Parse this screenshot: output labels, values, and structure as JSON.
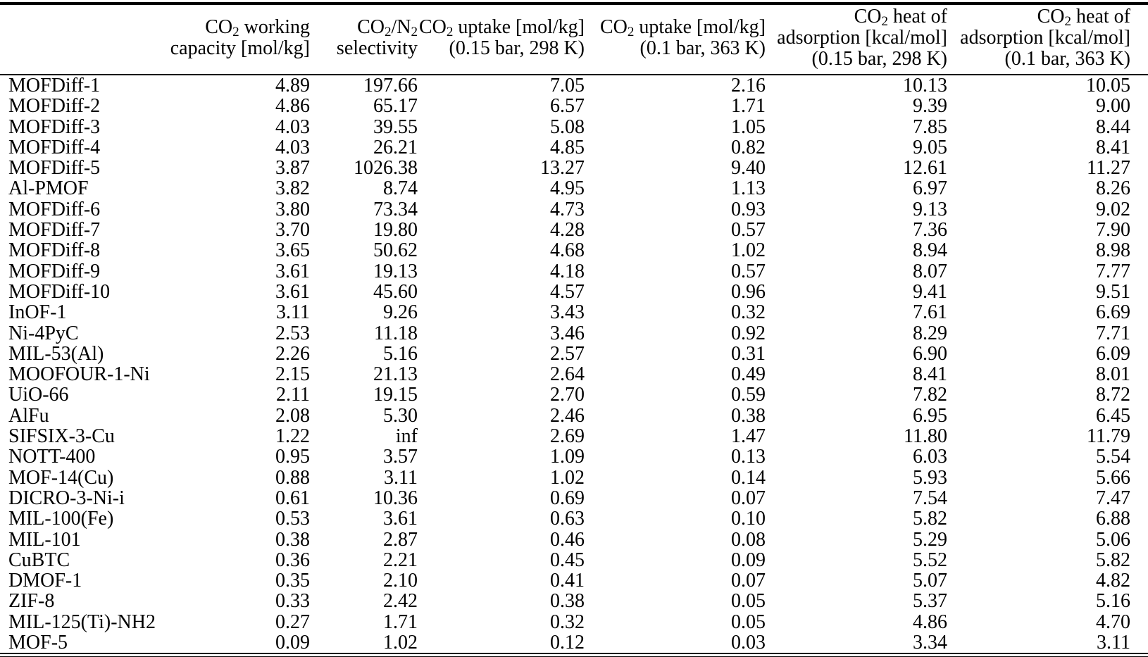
{
  "colors": {
    "background": "#ffffff",
    "text": "#000000",
    "rule": "#000000"
  },
  "table": {
    "columns": [
      {
        "id": "material",
        "lines": [
          ""
        ]
      },
      {
        "id": "working-capacity",
        "lines": [
          "CO2 working",
          "capacity [mol/kg]"
        ]
      },
      {
        "id": "selectivity",
        "lines": [
          "CO2/N2",
          "selectivity"
        ]
      },
      {
        "id": "uptake-015bar-298K",
        "lines": [
          "CO2 uptake [mol/kg]",
          "(0.15 bar, 298 K)"
        ]
      },
      {
        "id": "uptake-01bar-363K",
        "lines": [
          "CO2 uptake [mol/kg]",
          "(0.1 bar, 363 K)"
        ]
      },
      {
        "id": "heat-adsorption-015bar-298K",
        "lines": [
          "CO2 heat of",
          "adsorption [kcal/mol]",
          "(0.15 bar, 298 K)"
        ]
      },
      {
        "id": "heat-adsorption-01bar-363K",
        "lines": [
          "CO2 heat of",
          "adsorption [kcal/mol]",
          "(0.1 bar, 363 K)"
        ]
      }
    ],
    "rows": [
      {
        "material": "MOFDiff-1",
        "values": [
          "4.89",
          "197.66",
          "7.05",
          "2.16",
          "10.13",
          "10.05"
        ]
      },
      {
        "material": "MOFDiff-2",
        "values": [
          "4.86",
          "65.17",
          "6.57",
          "1.71",
          "9.39",
          "9.00"
        ]
      },
      {
        "material": "MOFDiff-3",
        "values": [
          "4.03",
          "39.55",
          "5.08",
          "1.05",
          "7.85",
          "8.44"
        ]
      },
      {
        "material": "MOFDiff-4",
        "values": [
          "4.03",
          "26.21",
          "4.85",
          "0.82",
          "9.05",
          "8.41"
        ]
      },
      {
        "material": "MOFDiff-5",
        "values": [
          "3.87",
          "1026.38",
          "13.27",
          "9.40",
          "12.61",
          "11.27"
        ]
      },
      {
        "material": "Al-PMOF",
        "values": [
          "3.82",
          "8.74",
          "4.95",
          "1.13",
          "6.97",
          "8.26"
        ]
      },
      {
        "material": "MOFDiff-6",
        "values": [
          "3.80",
          "73.34",
          "4.73",
          "0.93",
          "9.13",
          "9.02"
        ]
      },
      {
        "material": "MOFDiff-7",
        "values": [
          "3.70",
          "19.80",
          "4.28",
          "0.57",
          "7.36",
          "7.90"
        ]
      },
      {
        "material": "MOFDiff-8",
        "values": [
          "3.65",
          "50.62",
          "4.68",
          "1.02",
          "8.94",
          "8.98"
        ]
      },
      {
        "material": "MOFDiff-9",
        "values": [
          "3.61",
          "19.13",
          "4.18",
          "0.57",
          "8.07",
          "7.77"
        ]
      },
      {
        "material": "MOFDiff-10",
        "values": [
          "3.61",
          "45.60",
          "4.57",
          "0.96",
          "9.41",
          "9.51"
        ]
      },
      {
        "material": "InOF-1",
        "values": [
          "3.11",
          "9.26",
          "3.43",
          "0.32",
          "7.61",
          "6.69"
        ]
      },
      {
        "material": "Ni-4PyC",
        "values": [
          "2.53",
          "11.18",
          "3.46",
          "0.92",
          "8.29",
          "7.71"
        ]
      },
      {
        "material": "MIL-53(Al)",
        "values": [
          "2.26",
          "5.16",
          "2.57",
          "0.31",
          "6.90",
          "6.09"
        ]
      },
      {
        "material": "MOOFOUR-1-Ni",
        "values": [
          "2.15",
          "21.13",
          "2.64",
          "0.49",
          "8.41",
          "8.01"
        ]
      },
      {
        "material": "UiO-66",
        "values": [
          "2.11",
          "19.15",
          "2.70",
          "0.59",
          "7.82",
          "8.72"
        ]
      },
      {
        "material": "AlFu",
        "values": [
          "2.08",
          "5.30",
          "2.46",
          "0.38",
          "6.95",
          "6.45"
        ]
      },
      {
        "material": "SIFSIX-3-Cu",
        "values": [
          "1.22",
          "inf",
          "2.69",
          "1.47",
          "11.80",
          "11.79"
        ]
      },
      {
        "material": "NOTT-400",
        "values": [
          "0.95",
          "3.57",
          "1.09",
          "0.13",
          "6.03",
          "5.54"
        ]
      },
      {
        "material": "MOF-14(Cu)",
        "values": [
          "0.88",
          "3.11",
          "1.02",
          "0.14",
          "5.93",
          "5.66"
        ]
      },
      {
        "material": "DICRO-3-Ni-i",
        "values": [
          "0.61",
          "10.36",
          "0.69",
          "0.07",
          "7.54",
          "7.47"
        ]
      },
      {
        "material": "MIL-100(Fe)",
        "values": [
          "0.53",
          "3.61",
          "0.63",
          "0.10",
          "5.82",
          "6.88"
        ]
      },
      {
        "material": "MIL-101",
        "values": [
          "0.38",
          "2.87",
          "0.46",
          "0.08",
          "5.29",
          "5.06"
        ]
      },
      {
        "material": "CuBTC",
        "values": [
          "0.36",
          "2.21",
          "0.45",
          "0.09",
          "5.52",
          "5.82"
        ]
      },
      {
        "material": "DMOF-1",
        "values": [
          "0.35",
          "2.10",
          "0.41",
          "0.07",
          "5.07",
          "4.82"
        ]
      },
      {
        "material": "ZIF-8",
        "values": [
          "0.33",
          "2.42",
          "0.38",
          "0.05",
          "5.37",
          "5.16"
        ]
      },
      {
        "material": "MIL-125(Ti)-NH2",
        "values": [
          "0.27",
          "1.71",
          "0.32",
          "0.05",
          "4.86",
          "4.70"
        ]
      },
      {
        "material": "MOF-5",
        "values": [
          "0.09",
          "1.02",
          "0.12",
          "0.03",
          "3.34",
          "3.11"
        ]
      }
    ]
  }
}
